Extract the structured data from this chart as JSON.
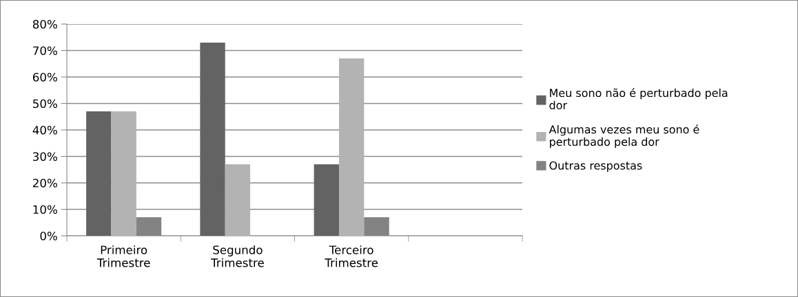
{
  "chart_data": {
    "type": "bar",
    "categories": [
      "Primeiro Trimestre",
      "Segundo Trimestre",
      "Terceiro Trimestre",
      null
    ],
    "series": [
      {
        "name": "Meu sono não é perturbado pela dor",
        "color": "#636363",
        "values": [
          47,
          73,
          27,
          null
        ]
      },
      {
        "name": "Algumas vezes meu sono é perturbado pela dor",
        "color": "#b3b3b3",
        "values": [
          47,
          27,
          67,
          null
        ]
      },
      {
        "name": "Outras respostas",
        "color": "#838383",
        "values": [
          7,
          null,
          7,
          null
        ]
      }
    ],
    "ylim": [
      0,
      80
    ],
    "yticks": [
      {
        "value": 0,
        "label": "0%"
      },
      {
        "value": 10,
        "label": "10%"
      },
      {
        "value": 20,
        "label": "20%"
      },
      {
        "value": 30,
        "label": "30%"
      },
      {
        "value": 40,
        "label": "40%"
      },
      {
        "value": 50,
        "label": "50%"
      },
      {
        "value": 60,
        "label": "60%"
      },
      {
        "value": 70,
        "label": "70%"
      },
      {
        "value": 80,
        "label": "80%"
      }
    ],
    "grid": "y",
    "legend": "right"
  }
}
